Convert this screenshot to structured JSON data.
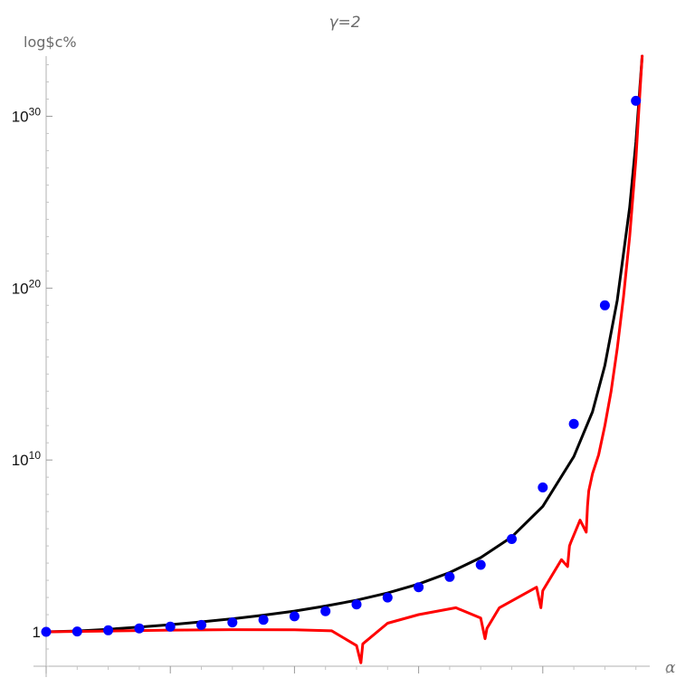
{
  "chart_data": {
    "type": "line",
    "title": "γ=2",
    "ylabel": "log$c%",
    "xlabel": "α",
    "yscale": "log10",
    "y_ticks": [
      {
        "exp": 0,
        "label": "1",
        "sup": ""
      },
      {
        "exp": 10,
        "label": "10",
        "sup": "10"
      },
      {
        "exp": 20,
        "label": "10",
        "sup": "20"
      },
      {
        "exp": 30,
        "label": "10",
        "sup": "30"
      }
    ],
    "xlim": [
      0,
      1
    ],
    "ylim_exp": [
      -2,
      33.5
    ],
    "grid": false,
    "colors": {
      "black_curve": "#000000",
      "red_curve": "#ff0000",
      "points": "#0000ff"
    },
    "series": [
      {
        "style": "dots",
        "color": "#0000ff",
        "x": [
          0.0,
          0.05,
          0.1,
          0.15,
          0.2,
          0.25,
          0.3,
          0.35,
          0.4,
          0.45,
          0.5,
          0.55,
          0.6,
          0.65,
          0.7,
          0.75,
          0.8,
          0.85,
          0.9,
          0.95
        ],
        "log10y": [
          0.0,
          0.02,
          0.09,
          0.2,
          0.3,
          0.4,
          0.55,
          0.7,
          0.9,
          1.2,
          1.6,
          2.0,
          2.6,
          3.2,
          3.9,
          5.4,
          8.4,
          12.1,
          19.0,
          30.9
        ]
      },
      {
        "style": "line",
        "color": "#000000",
        "x": [
          0.0,
          0.05,
          0.1,
          0.15,
          0.2,
          0.25,
          0.3,
          0.35,
          0.4,
          0.45,
          0.5,
          0.55,
          0.6,
          0.65,
          0.7,
          0.75,
          0.8,
          0.85,
          0.88,
          0.9,
          0.92,
          0.94,
          0.95,
          0.96
        ],
        "log10y": [
          0.0,
          0.05,
          0.15,
          0.28,
          0.42,
          0.58,
          0.76,
          0.97,
          1.21,
          1.5,
          1.84,
          2.26,
          2.78,
          3.45,
          4.32,
          5.52,
          7.3,
          10.2,
          12.8,
          15.5,
          19.3,
          24.7,
          28.5,
          33.5
        ]
      },
      {
        "style": "line",
        "color": "#ff0000",
        "x": [
          0.0,
          0.1,
          0.2,
          0.3,
          0.4,
          0.46,
          0.5,
          0.507,
          0.51,
          0.55,
          0.6,
          0.66,
          0.7,
          0.707,
          0.71,
          0.73,
          0.79,
          0.797,
          0.8,
          0.83,
          0.84,
          0.843,
          0.845,
          0.86,
          0.87,
          0.872,
          0.874,
          0.88,
          0.89,
          0.9,
          0.91,
          0.92,
          0.93,
          0.94,
          0.95,
          0.955,
          0.96
        ],
        "log10y": [
          0.0,
          0.05,
          0.1,
          0.13,
          0.12,
          0.06,
          -0.8,
          -1.8,
          -0.7,
          0.5,
          1.0,
          1.4,
          0.8,
          -0.4,
          0.2,
          1.4,
          2.6,
          1.4,
          2.4,
          4.2,
          3.8,
          5.0,
          5.2,
          6.5,
          5.8,
          7.3,
          8.2,
          9.2,
          10.3,
          12.0,
          14.0,
          16.5,
          19.5,
          23.0,
          27.5,
          30.5,
          33.5
        ]
      }
    ]
  }
}
